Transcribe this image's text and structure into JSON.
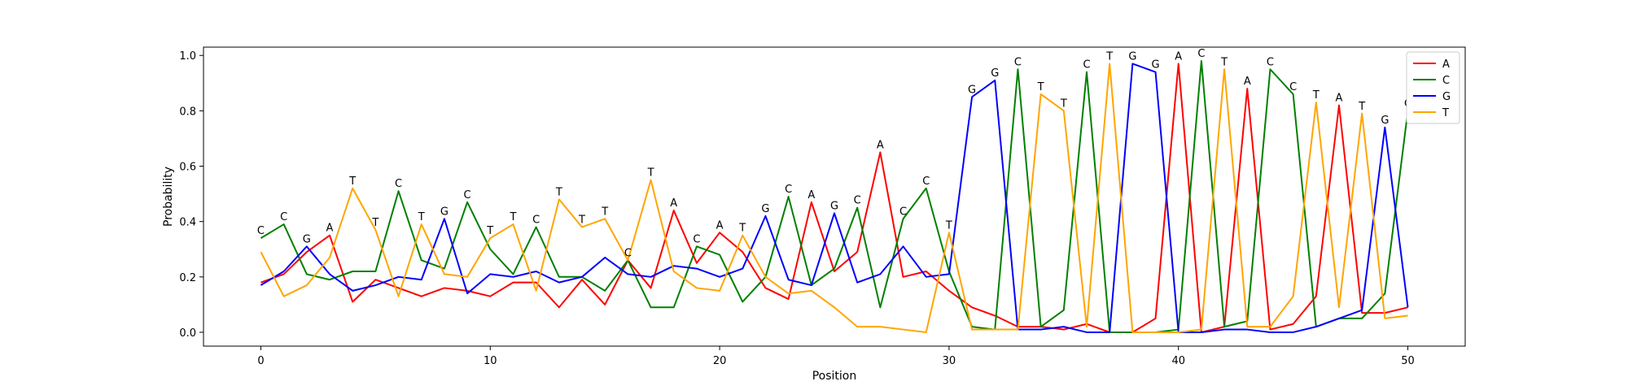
{
  "chart_data": {
    "type": "line",
    "xlabel": "Position",
    "ylabel": "Probability",
    "xlim": [
      -2.5,
      52.5
    ],
    "ylim": [
      -0.05,
      1.03
    ],
    "xticks": [
      0,
      10,
      20,
      30,
      40,
      50
    ],
    "yticks": [
      0.0,
      0.2,
      0.4,
      0.6,
      0.8,
      1.0
    ],
    "ytick_labels": [
      "0.0",
      "0.2",
      "0.4",
      "0.6",
      "0.8",
      "1.0"
    ],
    "grid": false,
    "legend_position": "top-right",
    "x": [
      0,
      1,
      2,
      3,
      4,
      5,
      6,
      7,
      8,
      9,
      10,
      11,
      12,
      13,
      14,
      15,
      16,
      17,
      18,
      19,
      20,
      21,
      22,
      23,
      24,
      25,
      26,
      27,
      28,
      29,
      30,
      31,
      32,
      33,
      34,
      35,
      36,
      37,
      38,
      39,
      40,
      41,
      42,
      43,
      44,
      45,
      46,
      47,
      48,
      49,
      50
    ],
    "series": [
      {
        "name": "A",
        "color": "#ff0000",
        "values": [
          0.18,
          0.21,
          0.29,
          0.35,
          0.11,
          0.19,
          0.16,
          0.13,
          0.16,
          0.15,
          0.13,
          0.18,
          0.18,
          0.09,
          0.19,
          0.1,
          0.26,
          0.16,
          0.44,
          0.25,
          0.36,
          0.29,
          0.16,
          0.12,
          0.47,
          0.22,
          0.29,
          0.65,
          0.2,
          0.22,
          0.15,
          0.09,
          0.06,
          0.02,
          0.02,
          0.01,
          0.03,
          0.0,
          0.0,
          0.05,
          0.97,
          0.0,
          0.02,
          0.88,
          0.01,
          0.03,
          0.13,
          0.82,
          0.07,
          0.07,
          0.09
        ]
      },
      {
        "name": "C",
        "color": "#008000",
        "values": [
          0.34,
          0.39,
          0.21,
          0.19,
          0.22,
          0.22,
          0.51,
          0.26,
          0.23,
          0.47,
          0.3,
          0.21,
          0.38,
          0.2,
          0.2,
          0.15,
          0.26,
          0.09,
          0.09,
          0.31,
          0.28,
          0.11,
          0.2,
          0.49,
          0.17,
          0.23,
          0.45,
          0.09,
          0.41,
          0.52,
          0.22,
          0.02,
          0.01,
          0.95,
          0.02,
          0.08,
          0.94,
          0.0,
          0.0,
          0.0,
          0.01,
          0.98,
          0.02,
          0.04,
          0.95,
          0.86,
          0.02,
          0.05,
          0.05,
          0.14,
          0.8
        ]
      },
      {
        "name": "G",
        "color": "#0000ff",
        "values": [
          0.17,
          0.22,
          0.31,
          0.21,
          0.15,
          0.17,
          0.2,
          0.19,
          0.41,
          0.14,
          0.21,
          0.2,
          0.22,
          0.18,
          0.2,
          0.27,
          0.21,
          0.2,
          0.24,
          0.23,
          0.2,
          0.23,
          0.42,
          0.19,
          0.17,
          0.43,
          0.18,
          0.21,
          0.31,
          0.2,
          0.21,
          0.85,
          0.91,
          0.01,
          0.01,
          0.02,
          0.0,
          0.0,
          0.97,
          0.94,
          0.0,
          0.0,
          0.01,
          0.01,
          0.0,
          0.0,
          0.02,
          0.05,
          0.08,
          0.74,
          0.09
        ]
      },
      {
        "name": "T",
        "color": "#ffa500",
        "values": [
          0.29,
          0.13,
          0.17,
          0.27,
          0.52,
          0.37,
          0.13,
          0.39,
          0.21,
          0.2,
          0.34,
          0.39,
          0.15,
          0.48,
          0.38,
          0.41,
          0.26,
          0.55,
          0.22,
          0.16,
          0.15,
          0.35,
          0.2,
          0.14,
          0.15,
          0.09,
          0.02,
          0.02,
          0.01,
          0.0,
          0.36,
          0.01,
          0.01,
          0.01,
          0.86,
          0.8,
          0.02,
          0.97,
          0.0,
          0.0,
          0.0,
          0.01,
          0.95,
          0.02,
          0.02,
          0.13,
          0.83,
          0.09,
          0.79,
          0.05,
          0.06
        ]
      }
    ],
    "peak_labels": [
      "C",
      "C",
      "G",
      "A",
      "T",
      "T",
      "C",
      "T",
      "G",
      "C",
      "T",
      "T",
      "C",
      "T",
      "T",
      "T",
      "C",
      "T",
      "A",
      "C",
      "A",
      "T",
      "G",
      "C",
      "A",
      "G",
      "C",
      "A",
      "C",
      "C",
      "T",
      "G",
      "G",
      "C",
      "T",
      "T",
      "C",
      "T",
      "G",
      "G",
      "A",
      "C",
      "T",
      "A",
      "C",
      "C",
      "T",
      "A",
      "T",
      "G",
      "C"
    ]
  }
}
